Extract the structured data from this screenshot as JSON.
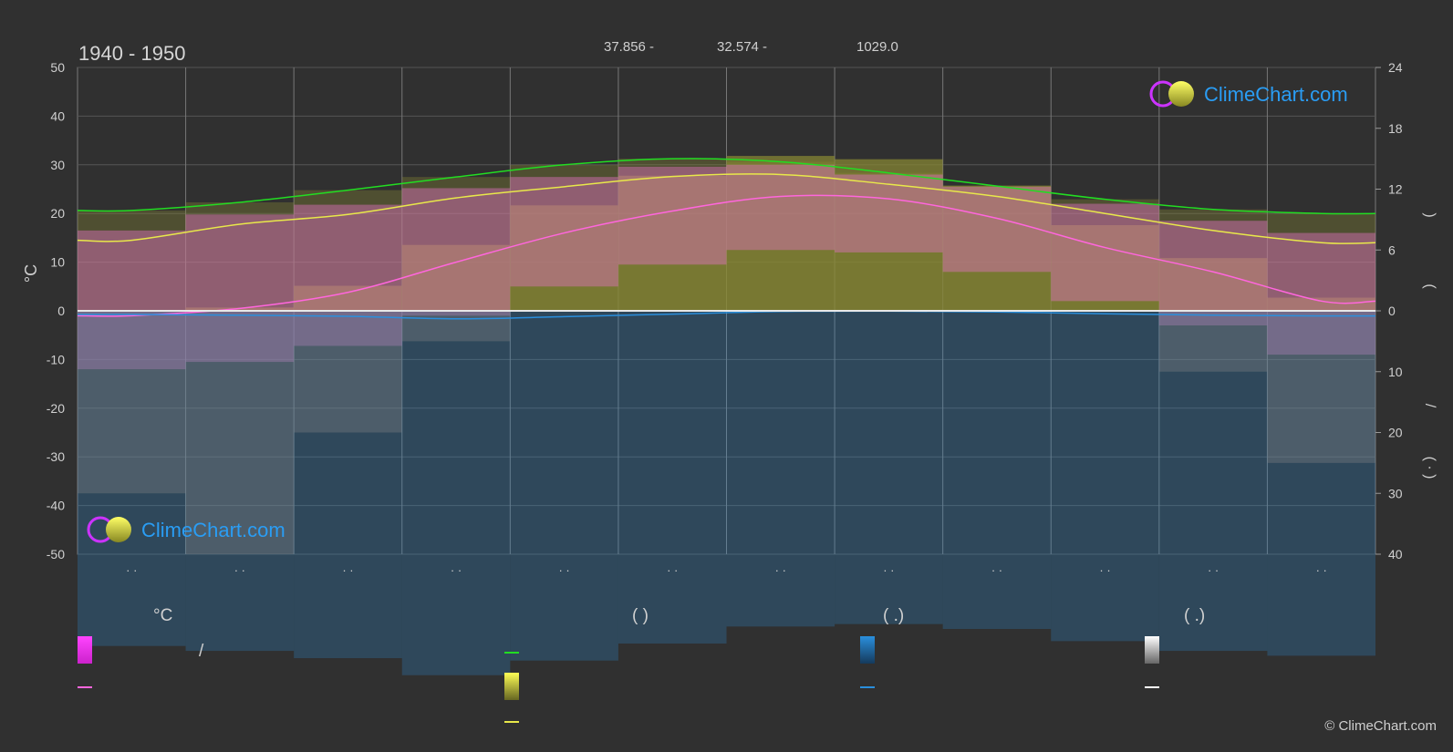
{
  "period_title": "1940 - 1950",
  "coordinates": {
    "lat": "37.856 -",
    "lon": "32.574 -",
    "elevation": "1029.0"
  },
  "brand": {
    "name": "ClimeChart.com",
    "copyright": "© ClimeChart.com"
  },
  "colors": {
    "background": "#303030",
    "daylight": "#22dd22",
    "sunshine": "#e8e84a",
    "temp_mean": "#ff66dd",
    "temp_range": "#dd33dd",
    "precip": "#2a8fdd",
    "snow": "#dddddd",
    "brand": "#2a9df4"
  },
  "legend": {
    "temp_header": "°C",
    "sun_header": "(          )",
    "rain_header": "(   .)",
    "snow_header": "(   .)",
    "temp_range_label": "/"
  },
  "chart_data": {
    "type": "area",
    "title": "",
    "xlabel": "",
    "ylabel": "°C",
    "ylim": [
      -50,
      50
    ],
    "y_ticks": [
      "50",
      "40",
      "30",
      "20",
      "10",
      "0",
      "-10",
      "-20",
      "-30",
      "-40",
      "-50"
    ],
    "right_axis_top": {
      "range": [
        0,
        24
      ],
      "ticks": [
        "24",
        "18",
        "12",
        "6",
        "0"
      ],
      "label_fragments": [
        "(",
        ")"
      ]
    },
    "right_axis_bottom": {
      "range": [
        0,
        40
      ],
      "ticks": [
        "0",
        "10",
        "20",
        "30",
        "40"
      ],
      "label_fragments": [
        "/",
        "(   ·   )"
      ]
    },
    "month_tick_labels": [
      "· ·",
      "· ·",
      "· ·",
      "· ·",
      "· ·",
      "· ·",
      "· ·",
      "· ·",
      "· ·",
      "· ·",
      "· ·",
      "· ·"
    ],
    "x": [
      0,
      1,
      2,
      3,
      4,
      5,
      6,
      7,
      8,
      9,
      10,
      11
    ],
    "series": [
      {
        "values": [
          9.9,
          10.7,
          11.9,
          13.2,
          14.4,
          15.0,
          14.7,
          13.6,
          12.3,
          11.0,
          10.0,
          9.6
        ]
      },
      {
        "values": [
          14.5,
          17.8,
          19.8,
          23.2,
          25.5,
          27.6,
          28.0,
          26.0,
          23.5,
          20.0,
          16.5,
          14.0
        ]
      },
      {
        "values": [
          -1.0,
          0.5,
          3.8,
          10.0,
          16.0,
          20.5,
          23.5,
          23.0,
          19.0,
          13.0,
          8.0,
          2.0
        ]
      },
      {
        "values": [
          1.0,
          1.2,
          1.5,
          2.2,
          1.6,
          0.9,
          0.2,
          0.1,
          0.3,
          0.8,
          1.2,
          1.4
        ]
      },
      {
        "values": [
          0.6,
          0.8,
          0.4,
          0.1,
          0.0,
          0.0,
          0.0,
          0.0,
          0.0,
          0.0,
          0.2,
          0.5
        ]
      }
    ],
    "grid": true,
    "legend_position": "bottom"
  }
}
